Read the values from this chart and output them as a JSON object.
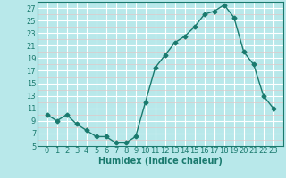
{
  "x": [
    0,
    1,
    2,
    3,
    4,
    5,
    6,
    7,
    8,
    9,
    10,
    11,
    12,
    13,
    14,
    15,
    16,
    17,
    18,
    19,
    20,
    21,
    22,
    23
  ],
  "y": [
    10,
    9,
    10,
    8.5,
    7.5,
    6.5,
    6.5,
    5.5,
    5.5,
    6.5,
    12,
    17.5,
    19.5,
    21.5,
    22.5,
    24,
    26,
    26.5,
    27.5,
    25.5,
    20,
    18,
    13,
    11
  ],
  "line_color": "#1a7a6e",
  "bg_color": "#b8e8ea",
  "grid_major_color": "#ffffff",
  "grid_minor_color": "#e0c8c8",
  "xlabel": "Humidex (Indice chaleur)",
  "ylim": [
    5,
    28
  ],
  "xlim": [
    -0.5,
    23.5
  ],
  "yticks": [
    5,
    7,
    9,
    11,
    13,
    15,
    17,
    19,
    21,
    23,
    25,
    27
  ],
  "xticks": [
    0,
    1,
    2,
    3,
    4,
    5,
    6,
    7,
    8,
    9,
    10,
    11,
    12,
    13,
    14,
    15,
    16,
    17,
    18,
    19,
    20,
    21,
    22,
    23
  ],
  "marker_size": 2.5,
  "line_width": 1.0,
  "xlabel_fontsize": 7,
  "tick_fontsize": 6,
  "axis_color": "#1a7a6e"
}
